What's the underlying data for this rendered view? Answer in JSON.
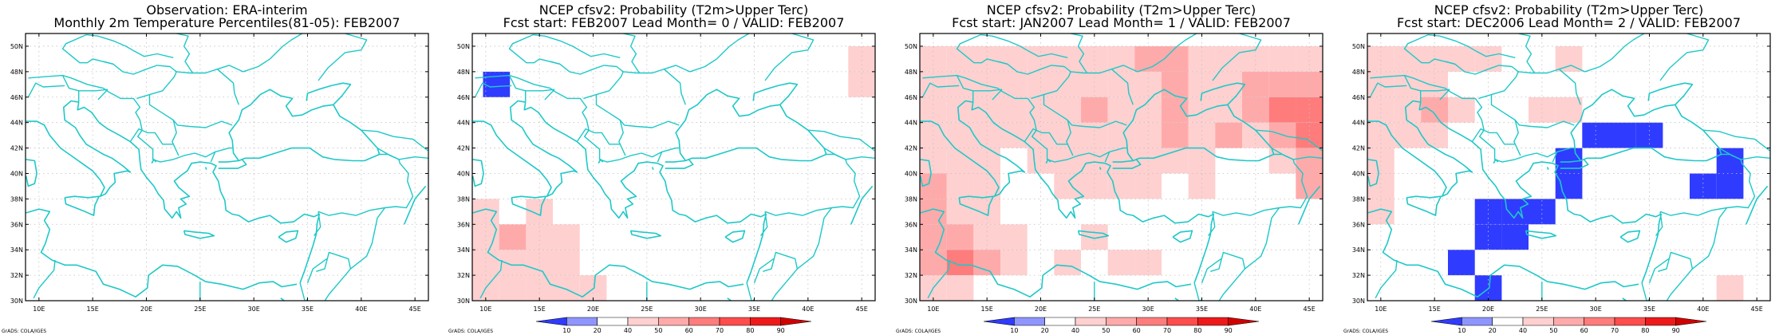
{
  "colors": {
    "coast": "#1fc8c8",
    "grid": "#c0c0c0",
    "frame": "#000000",
    "blue": "#2f3cff",
    "levels": [
      "#2f3cff",
      "#8e95ff",
      "#ffffff",
      "#ffd0d0",
      "#ffaaaa",
      "#ff7c7c",
      "#ff4c4c",
      "#ee1a1a",
      "#d20000"
    ]
  },
  "axes": {
    "lon_labels": [
      "10E",
      "15E",
      "20E",
      "25E",
      "30E",
      "35E",
      "40E",
      "45E"
    ],
    "lat_labels": [
      "30N",
      "32N",
      "34N",
      "36N",
      "38N",
      "40N",
      "42N",
      "44N",
      "46N",
      "48N",
      "50N"
    ]
  },
  "colorbar": {
    "labels": [
      "10",
      "20",
      "40",
      "50",
      "60",
      "70",
      "80",
      "90"
    ]
  },
  "credit": "GrADS: COLA/IGES",
  "panels": [
    {
      "title1": "Observation: ERA-interim",
      "title2": "Monthly 2m Temperature Percentiles(81-05): FEB2007",
      "show_colorbar": false,
      "cells": []
    },
    {
      "title1": "NCEP cfsv2: Probability (T2m>Upper Terc)",
      "title2": "Fcst start: FEB2007   Lead Month= 0 / VALID: FEB2007",
      "show_colorbar": true,
      "cells": [
        {
          "lon": 11,
          "lat": 47,
          "v": 10
        },
        {
          "lon": 45,
          "lat": 49,
          "v": 50
        },
        {
          "lon": 45,
          "lat": 47,
          "v": 50
        },
        {
          "lon": 10,
          "lat": 37,
          "v": 50
        },
        {
          "lon": 10,
          "lat": 35,
          "v": 50
        },
        {
          "lon": 10,
          "lat": 33,
          "v": 50
        },
        {
          "lon": 10,
          "lat": 31,
          "v": 50
        },
        {
          "lon": 12.5,
          "lat": 35,
          "v": 60
        },
        {
          "lon": 12.5,
          "lat": 33,
          "v": 50
        },
        {
          "lon": 12.5,
          "lat": 31,
          "v": 50
        },
        {
          "lon": 15,
          "lat": 37,
          "v": 50
        },
        {
          "lon": 15,
          "lat": 35,
          "v": 50
        },
        {
          "lon": 15,
          "lat": 33,
          "v": 50
        },
        {
          "lon": 15,
          "lat": 31,
          "v": 50
        },
        {
          "lon": 17.5,
          "lat": 35,
          "v": 50
        },
        {
          "lon": 17.5,
          "lat": 33,
          "v": 50
        },
        {
          "lon": 17.5,
          "lat": 31,
          "v": 50
        },
        {
          "lon": 20,
          "lat": 31,
          "v": 50
        }
      ]
    },
    {
      "title1": "NCEP cfsv2: Probability (T2m>Upper Terc)",
      "title2": "Fcst start: JAN2007   Lead Month= 1 / VALID: FEB2007",
      "show_colorbar": true,
      "cells": [
        {
          "lon": 10,
          "lat": 49,
          "v": 50
        },
        {
          "lon": 12.5,
          "lat": 49,
          "v": 50
        },
        {
          "lon": 15,
          "lat": 49,
          "v": 50
        },
        {
          "lon": 17.5,
          "lat": 49,
          "v": 50
        },
        {
          "lon": 20,
          "lat": 49,
          "v": 50
        },
        {
          "lon": 22.5,
          "lat": 49,
          "v": 50
        },
        {
          "lon": 25,
          "lat": 49,
          "v": 50
        },
        {
          "lon": 27.5,
          "lat": 49,
          "v": 50
        },
        {
          "lon": 30,
          "lat": 49,
          "v": 60
        },
        {
          "lon": 32.5,
          "lat": 49,
          "v": 60
        },
        {
          "lon": 35,
          "lat": 49,
          "v": 50
        },
        {
          "lon": 37.5,
          "lat": 49,
          "v": 50
        },
        {
          "lon": 40,
          "lat": 49,
          "v": 50
        },
        {
          "lon": 42.5,
          "lat": 49,
          "v": 50
        },
        {
          "lon": 45,
          "lat": 49,
          "v": 50
        },
        {
          "lon": 10,
          "lat": 47,
          "v": 50
        },
        {
          "lon": 12.5,
          "lat": 47,
          "v": 50
        },
        {
          "lon": 15,
          "lat": 47,
          "v": 50
        },
        {
          "lon": 17.5,
          "lat": 47,
          "v": 50
        },
        {
          "lon": 20,
          "lat": 47,
          "v": 50
        },
        {
          "lon": 22.5,
          "lat": 47,
          "v": 50
        },
        {
          "lon": 25,
          "lat": 47,
          "v": 50
        },
        {
          "lon": 27.5,
          "lat": 47,
          "v": 50
        },
        {
          "lon": 30,
          "lat": 47,
          "v": 50
        },
        {
          "lon": 32.5,
          "lat": 47,
          "v": 60
        },
        {
          "lon": 35,
          "lat": 47,
          "v": 50
        },
        {
          "lon": 37.5,
          "lat": 47,
          "v": 50
        },
        {
          "lon": 40,
          "lat": 47,
          "v": 60
        },
        {
          "lon": 42.5,
          "lat": 47,
          "v": 60
        },
        {
          "lon": 45,
          "lat": 47,
          "v": 60
        },
        {
          "lon": 10,
          "lat": 45,
          "v": 50
        },
        {
          "lon": 12.5,
          "lat": 45,
          "v": 50
        },
        {
          "lon": 15,
          "lat": 45,
          "v": 50
        },
        {
          "lon": 17.5,
          "lat": 45,
          "v": 50
        },
        {
          "lon": 20,
          "lat": 45,
          "v": 50
        },
        {
          "lon": 22.5,
          "lat": 45,
          "v": 50
        },
        {
          "lon": 25,
          "lat": 45,
          "v": 60
        },
        {
          "lon": 27.5,
          "lat": 45,
          "v": 50
        },
        {
          "lon": 30,
          "lat": 45,
          "v": 50
        },
        {
          "lon": 32.5,
          "lat": 45,
          "v": 60
        },
        {
          "lon": 35,
          "lat": 45,
          "v": 50
        },
        {
          "lon": 37.5,
          "lat": 45,
          "v": 50
        },
        {
          "lon": 40,
          "lat": 45,
          "v": 60
        },
        {
          "lon": 42.5,
          "lat": 45,
          "v": 70
        },
        {
          "lon": 45,
          "lat": 45,
          "v": 70
        },
        {
          "lon": 10,
          "lat": 43,
          "v": 50
        },
        {
          "lon": 12.5,
          "lat": 43,
          "v": 50
        },
        {
          "lon": 15,
          "lat": 43,
          "v": 50
        },
        {
          "lon": 17.5,
          "lat": 43,
          "v": 50
        },
        {
          "lon": 20,
          "lat": 43,
          "v": 50
        },
        {
          "lon": 22.5,
          "lat": 43,
          "v": 50
        },
        {
          "lon": 25,
          "lat": 43,
          "v": 50
        },
        {
          "lon": 27.5,
          "lat": 43,
          "v": 50
        },
        {
          "lon": 30,
          "lat": 43,
          "v": 50
        },
        {
          "lon": 32.5,
          "lat": 43,
          "v": 60
        },
        {
          "lon": 35,
          "lat": 43,
          "v": 50
        },
        {
          "lon": 37.5,
          "lat": 43,
          "v": 60
        },
        {
          "lon": 40,
          "lat": 43,
          "v": 50
        },
        {
          "lon": 42.5,
          "lat": 43,
          "v": 60
        },
        {
          "lon": 45,
          "lat": 43,
          "v": 70
        },
        {
          "lon": 10,
          "lat": 41,
          "v": 50
        },
        {
          "lon": 12.5,
          "lat": 41,
          "v": 50
        },
        {
          "lon": 15,
          "lat": 41,
          "v": 50
        },
        {
          "lon": 20,
          "lat": 41,
          "v": 50
        },
        {
          "lon": 22.5,
          "lat": 41,
          "v": 50
        },
        {
          "lon": 25,
          "lat": 41,
          "v": 50
        },
        {
          "lon": 27.5,
          "lat": 41,
          "v": 50
        },
        {
          "lon": 30,
          "lat": 41,
          "v": 50
        },
        {
          "lon": 32.5,
          "lat": 41,
          "v": 50
        },
        {
          "lon": 35,
          "lat": 41,
          "v": 50
        },
        {
          "lon": 42.5,
          "lat": 41,
          "v": 50
        },
        {
          "lon": 45,
          "lat": 41,
          "v": 60
        },
        {
          "lon": 10,
          "lat": 39,
          "v": 60
        },
        {
          "lon": 12.5,
          "lat": 39,
          "v": 50
        },
        {
          "lon": 15,
          "lat": 39,
          "v": 50
        },
        {
          "lon": 22.5,
          "lat": 39,
          "v": 50
        },
        {
          "lon": 25,
          "lat": 39,
          "v": 50
        },
        {
          "lon": 27.5,
          "lat": 39,
          "v": 50
        },
        {
          "lon": 30,
          "lat": 39,
          "v": 50
        },
        {
          "lon": 35,
          "lat": 39,
          "v": 50
        },
        {
          "lon": 45,
          "lat": 39,
          "v": 60
        },
        {
          "lon": 10,
          "lat": 37,
          "v": 60
        },
        {
          "lon": 12.5,
          "lat": 37,
          "v": 50
        },
        {
          "lon": 15,
          "lat": 37,
          "v": 50
        },
        {
          "lon": 10,
          "lat": 35,
          "v": 60
        },
        {
          "lon": 12.5,
          "lat": 35,
          "v": 60
        },
        {
          "lon": 15,
          "lat": 35,
          "v": 50
        },
        {
          "lon": 17.5,
          "lat": 35,
          "v": 50
        },
        {
          "lon": 25,
          "lat": 35,
          "v": 50
        },
        {
          "lon": 10,
          "lat": 33,
          "v": 60
        },
        {
          "lon": 12.5,
          "lat": 33,
          "v": 70
        },
        {
          "lon": 15,
          "lat": 33,
          "v": 60
        },
        {
          "lon": 17.5,
          "lat": 33,
          "v": 50
        },
        {
          "lon": 22.5,
          "lat": 33,
          "v": 50
        },
        {
          "lon": 27.5,
          "lat": 33,
          "v": 50
        },
        {
          "lon": 30,
          "lat": 33,
          "v": 50
        },
        {
          "lon": 10,
          "lat": 31,
          "v": 50
        },
        {
          "lon": 12.5,
          "lat": 31,
          "v": 50
        }
      ]
    },
    {
      "title1": "NCEP cfsv2: Probability (T2m>Upper Terc)",
      "title2": "Fcst start: DEC2006   Lead Month= 2 / VALID: FEB2007",
      "show_colorbar": true,
      "cells": [
        {
          "lon": 10,
          "lat": 49,
          "v": 50
        },
        {
          "lon": 12.5,
          "lat": 49,
          "v": 50
        },
        {
          "lon": 15,
          "lat": 49,
          "v": 50
        },
        {
          "lon": 17.5,
          "lat": 49,
          "v": 50
        },
        {
          "lon": 20,
          "lat": 49,
          "v": 50
        },
        {
          "lon": 27.5,
          "lat": 49,
          "v": 50
        },
        {
          "lon": 10,
          "lat": 47,
          "v": 50
        },
        {
          "lon": 12.5,
          "lat": 47,
          "v": 50
        },
        {
          "lon": 15,
          "lat": 47,
          "v": 50
        },
        {
          "lon": 10,
          "lat": 45,
          "v": 50
        },
        {
          "lon": 12.5,
          "lat": 45,
          "v": 50
        },
        {
          "lon": 15,
          "lat": 45,
          "v": 60
        },
        {
          "lon": 17.5,
          "lat": 45,
          "v": 50
        },
        {
          "lon": 25,
          "lat": 45,
          "v": 50
        },
        {
          "lon": 27.5,
          "lat": 45,
          "v": 50
        },
        {
          "lon": 10,
          "lat": 43,
          "v": 50
        },
        {
          "lon": 12.5,
          "lat": 43,
          "v": 50
        },
        {
          "lon": 15,
          "lat": 43,
          "v": 50
        },
        {
          "lon": 10,
          "lat": 41,
          "v": 50
        },
        {
          "lon": 10,
          "lat": 39,
          "v": 50
        },
        {
          "lon": 10,
          "lat": 37,
          "v": 50
        },
        {
          "lon": 30,
          "lat": 43,
          "v": 10
        },
        {
          "lon": 32.5,
          "lat": 43,
          "v": 10
        },
        {
          "lon": 35,
          "lat": 43,
          "v": 10
        },
        {
          "lon": 27.5,
          "lat": 41,
          "v": 10
        },
        {
          "lon": 42.5,
          "lat": 41,
          "v": 10
        },
        {
          "lon": 27.5,
          "lat": 39,
          "v": 10
        },
        {
          "lon": 40,
          "lat": 39,
          "v": 10
        },
        {
          "lon": 42.5,
          "lat": 39,
          "v": 10
        },
        {
          "lon": 20,
          "lat": 37,
          "v": 10
        },
        {
          "lon": 22.5,
          "lat": 37,
          "v": 10
        },
        {
          "lon": 25,
          "lat": 37,
          "v": 10
        },
        {
          "lon": 20,
          "lat": 35,
          "v": 10
        },
        {
          "lon": 22.5,
          "lat": 35,
          "v": 10
        },
        {
          "lon": 17.5,
          "lat": 33,
          "v": 10
        },
        {
          "lon": 20,
          "lat": 31,
          "v": 10
        },
        {
          "lon": 42.5,
          "lat": 31,
          "v": 50
        }
      ]
    }
  ]
}
